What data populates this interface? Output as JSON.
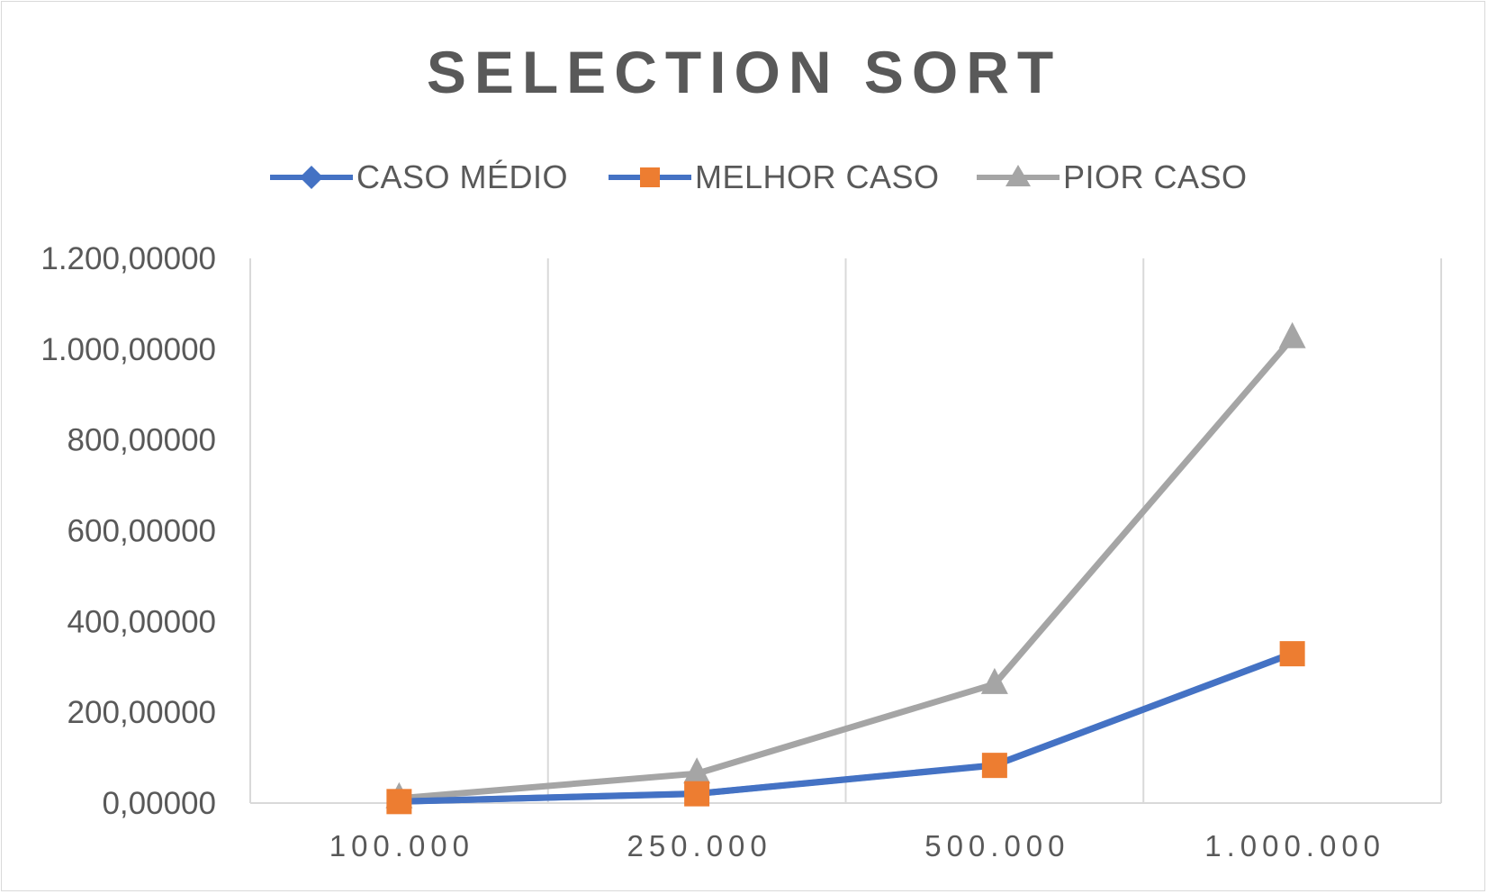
{
  "chart_data": {
    "type": "line",
    "title": "SELECTION SORT",
    "xlabel": "",
    "ylabel": "",
    "categories": [
      "100.000",
      "250.000",
      "500.000",
      "1.000.000"
    ],
    "y_tick_labels": [
      "0,00000",
      "200,00000",
      "400,00000",
      "600,00000",
      "800,00000",
      "1.000,00000",
      "1.200,00000"
    ],
    "ylim": [
      0,
      1200
    ],
    "grid": "vertical",
    "legend_position": "top",
    "series": [
      {
        "name": "CASO MÉDIO",
        "values": [
          3.4,
          20.9,
          83.7,
          330.0
        ],
        "color": "#4472c4",
        "marker": "diamond"
      },
      {
        "name": "MELHOR CASO",
        "values": [
          3.3,
          20.5,
          83.0,
          329.0
        ],
        "color": "#ed7d31",
        "line_color": "#4472c4",
        "marker": "square"
      },
      {
        "name": "PIOR CASO",
        "values": [
          10.5,
          65.0,
          262.0,
          1024.0
        ],
        "color": "#a5a5a5",
        "marker": "triangle"
      }
    ]
  }
}
